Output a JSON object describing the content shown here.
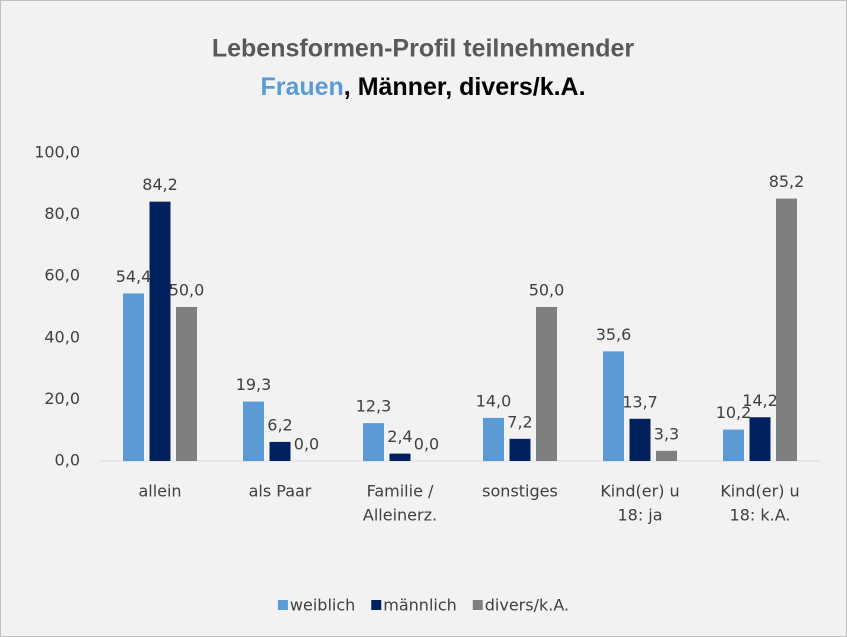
{
  "chart_data": {
    "type": "bar",
    "title": [
      "Lebensformen-Profil teilnehmender",
      "Frauen",
      ", Männer, divers/k.A."
    ],
    "title_colors": [
      "#595959",
      "#5b9bd5",
      "#000000"
    ],
    "categories": [
      [
        "allein"
      ],
      [
        "als Paar"
      ],
      [
        "Familie /",
        "Alleinerz."
      ],
      [
        "sonstiges"
      ],
      [
        "Kind(er) u",
        "18: ja"
      ],
      [
        "Kind(er) u",
        "18: k.A."
      ]
    ],
    "series": [
      {
        "name": "weiblich",
        "color": "#5b9bd5",
        "values": [
          54.4,
          19.3,
          12.3,
          14.0,
          35.6,
          10.2
        ],
        "value_labels": [
          "54,4",
          "19,3",
          "12,3",
          "14,0",
          "35,6",
          "10,2"
        ]
      },
      {
        "name": "männlich",
        "color": "#002060",
        "values": [
          84.2,
          6.2,
          2.4,
          7.2,
          13.7,
          14.2
        ],
        "value_labels": [
          "84,2",
          "6,2",
          "2,4",
          "7,2",
          "13,7",
          "14,2"
        ]
      },
      {
        "name": "divers/k.A.",
        "color": "#7f7f7f",
        "values": [
          50.0,
          0.0,
          0.0,
          50.0,
          3.3,
          85.2
        ],
        "value_labels": [
          "50,0",
          "0,0",
          "0,0",
          "50,0",
          "3,3",
          "85,2"
        ]
      }
    ],
    "ylim": [
      0,
      100
    ],
    "yticks": [
      {
        "value": 0,
        "label": "0,0"
      },
      {
        "value": 20,
        "label": "20,0"
      },
      {
        "value": 40,
        "label": "40,0"
      },
      {
        "value": 60,
        "label": "60,0"
      },
      {
        "value": 80,
        "label": "80,0"
      },
      {
        "value": 100,
        "label": "100,0"
      }
    ],
    "grid": false,
    "legend": "bottom"
  }
}
